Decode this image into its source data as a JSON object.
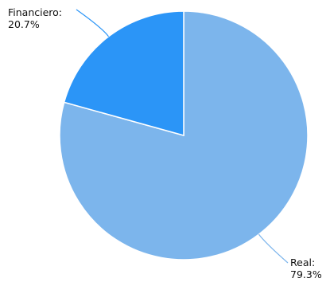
{
  "chart_data": {
    "type": "pie",
    "title": "",
    "slices": [
      {
        "label": "Real",
        "value": 79.3,
        "display": "79.3%",
        "color": "#7cb5ec"
      },
      {
        "label": "Financiero",
        "value": 20.7,
        "display": "20.7%",
        "color": "#2b95f7"
      }
    ],
    "labels": {
      "real_name": "Real:",
      "real_value": "79.3%",
      "financiero_name": "Financiero:",
      "financiero_value": "20.7%"
    },
    "start_angle_deg": 0,
    "direction": "clockwise",
    "legend": "none"
  }
}
